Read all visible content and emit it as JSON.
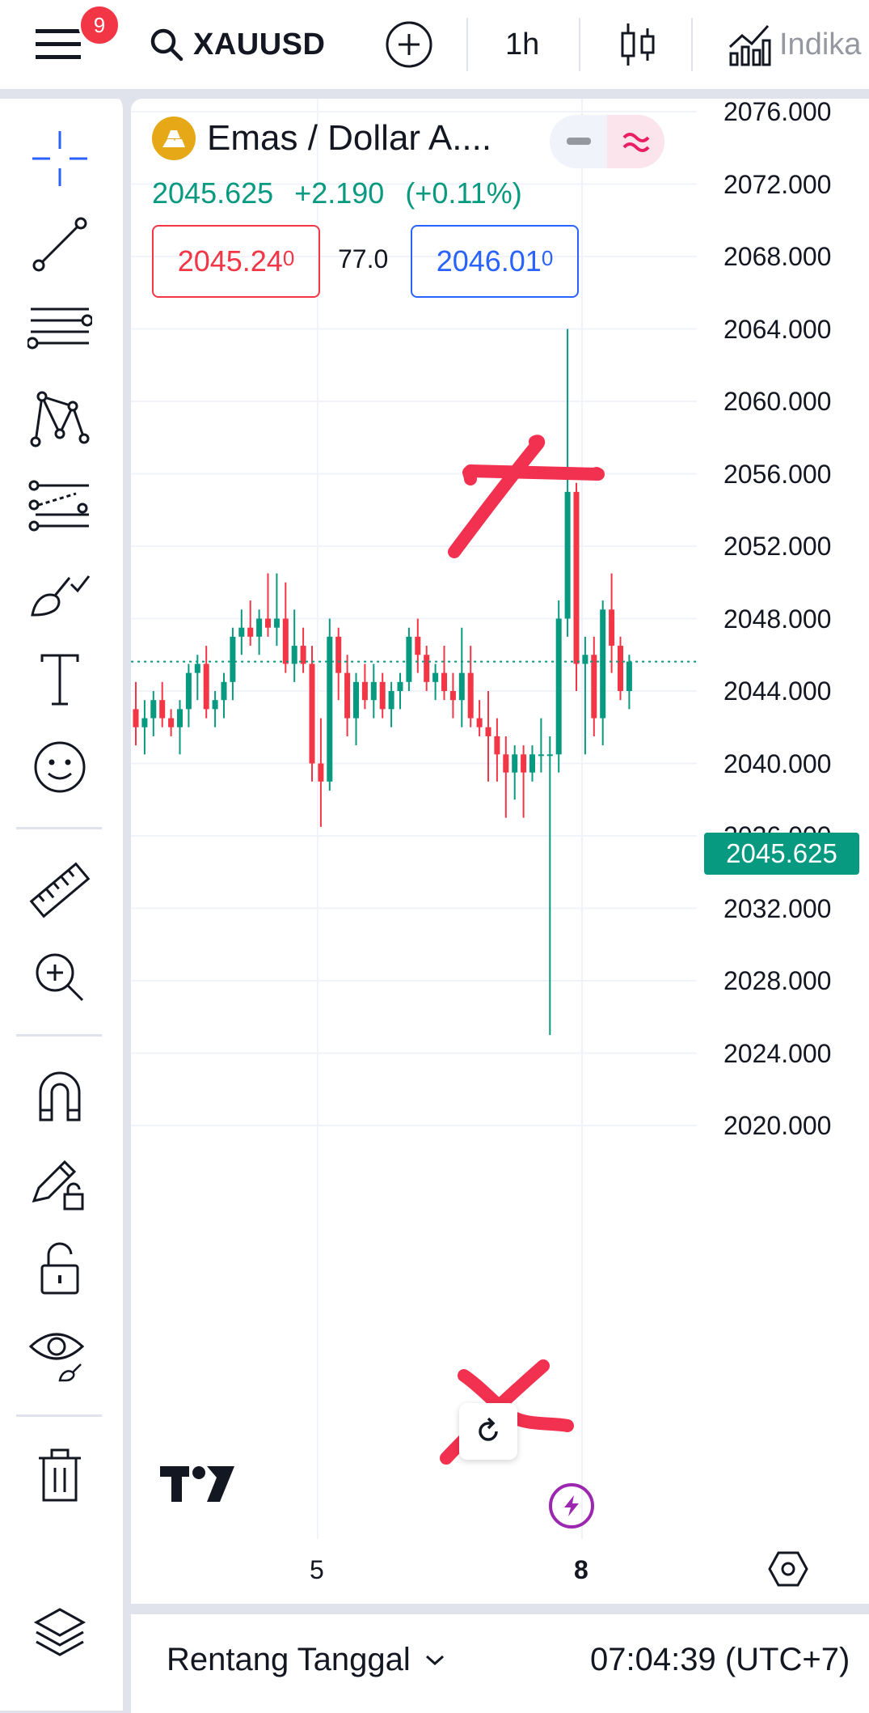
{
  "topbar": {
    "notification_count": "9",
    "symbol": "XAUUSD",
    "interval": "1h",
    "indicators_label": "Indika"
  },
  "legend": {
    "title": "Emas / Dollar A....",
    "last_price": "2045.625",
    "change": "+2.190",
    "change_pct": "(+0.11%)",
    "bid_main": "2045.24",
    "bid_sup": "0",
    "spread": "77.0",
    "ask_main": "2046.01",
    "ask_sup": "0"
  },
  "price_axis": {
    "labels": [
      "2076.000",
      "2072.000",
      "2068.000",
      "2064.000",
      "2060.000",
      "2056.000",
      "2052.000",
      "2048.000",
      "2044.000",
      "2040.000",
      "2036.000",
      "2032.000",
      "2028.000",
      "2024.000",
      "2020.000"
    ],
    "current_price_label": "2045.625"
  },
  "time_axis": {
    "labels": [
      "5",
      "8"
    ]
  },
  "bottombar": {
    "range_label": "Rentang Tanggal",
    "clock": "07:04:39 (UTC+7)"
  },
  "colors": {
    "up": "#089981",
    "down": "#f23645",
    "accent": "#2962ff",
    "annotation": "#f2304f"
  },
  "icons": {
    "menu": "menu-icon",
    "search": "search-icon",
    "add": "add-circle-icon",
    "chart_type": "candles-icon",
    "indicators": "indicators-icon"
  },
  "chart_data": {
    "type": "candlestick",
    "symbol": "XAUUSD",
    "interval": "1h",
    "ylim": [
      2018,
      2078
    ],
    "x_ticks": [
      "5",
      "8"
    ],
    "candles": [
      [
        2043.0,
        2044.5,
        2041.0,
        2042.0
      ],
      [
        2042.0,
        2043.5,
        2040.5,
        2042.5
      ],
      [
        2042.5,
        2044.0,
        2041.5,
        2043.5
      ],
      [
        2043.5,
        2044.5,
        2042.0,
        2042.5
      ],
      [
        2042.5,
        2043.0,
        2041.5,
        2042.0
      ],
      [
        2042.0,
        2043.5,
        2040.5,
        2043.0
      ],
      [
        2043.0,
        2045.5,
        2042.0,
        2045.0
      ],
      [
        2045.0,
        2046.0,
        2043.5,
        2045.5
      ],
      [
        2045.5,
        2046.5,
        2042.5,
        2043.0
      ],
      [
        2043.0,
        2044.0,
        2042.0,
        2043.5
      ],
      [
        2043.5,
        2045.0,
        2042.5,
        2044.5
      ],
      [
        2044.5,
        2047.5,
        2043.5,
        2047.0
      ],
      [
        2047.0,
        2048.5,
        2046.0,
        2047.5
      ],
      [
        2047.5,
        2049.0,
        2046.5,
        2047.0
      ],
      [
        2047.0,
        2048.5,
        2046.0,
        2048.0
      ],
      [
        2048.0,
        2050.5,
        2047.0,
        2047.5
      ],
      [
        2047.5,
        2050.5,
        2046.5,
        2048.0
      ],
      [
        2048.0,
        2050.0,
        2045.0,
        2045.5
      ],
      [
        2045.5,
        2048.5,
        2044.5,
        2046.5
      ],
      [
        2046.5,
        2047.5,
        2045.0,
        2045.5
      ],
      [
        2045.5,
        2046.5,
        2039.0,
        2040.0
      ],
      [
        2040.0,
        2042.5,
        2036.5,
        2039.0
      ],
      [
        2039.0,
        2048.0,
        2038.5,
        2047.0
      ],
      [
        2047.0,
        2047.5,
        2043.5,
        2045.0
      ],
      [
        2045.0,
        2046.0,
        2041.5,
        2042.5
      ],
      [
        2042.5,
        2045.0,
        2041.0,
        2044.5
      ],
      [
        2044.5,
        2045.5,
        2043.0,
        2043.5
      ],
      [
        2043.5,
        2045.5,
        2042.5,
        2044.5
      ],
      [
        2044.5,
        2045.0,
        2042.5,
        2043.0
      ],
      [
        2043.0,
        2044.5,
        2042.0,
        2044.0
      ],
      [
        2044.0,
        2045.0,
        2043.0,
        2044.5
      ],
      [
        2044.5,
        2047.5,
        2044.0,
        2047.0
      ],
      [
        2047.0,
        2048.0,
        2045.0,
        2046.0
      ],
      [
        2046.0,
        2046.5,
        2044.0,
        2044.5
      ],
      [
        2044.5,
        2045.5,
        2043.5,
        2045.0
      ],
      [
        2045.0,
        2046.5,
        2043.5,
        2044.0
      ],
      [
        2044.0,
        2045.0,
        2042.5,
        2043.5
      ],
      [
        2043.5,
        2047.5,
        2042.0,
        2045.0
      ],
      [
        2045.0,
        2046.5,
        2042.0,
        2042.5
      ],
      [
        2042.5,
        2043.5,
        2041.5,
        2042.0
      ],
      [
        2042.0,
        2044.0,
        2039.0,
        2041.5
      ],
      [
        2041.5,
        2042.5,
        2039.0,
        2040.5
      ],
      [
        2040.5,
        2041.5,
        2037.0,
        2039.5
      ],
      [
        2039.5,
        2041.0,
        2038.0,
        2040.5
      ],
      [
        2040.5,
        2041.0,
        2037.0,
        2039.5
      ],
      [
        2039.5,
        2041.0,
        2039.0,
        2040.5
      ],
      [
        2040.5,
        2042.5,
        2039.5,
        2040.5
      ],
      [
        2040.5,
        2041.5,
        2025.0,
        2040.5
      ],
      [
        2040.5,
        2049.0,
        2039.5,
        2048.0
      ],
      [
        2048.0,
        2064.0,
        2047.0,
        2055.0
      ],
      [
        2055.0,
        2055.5,
        2044.0,
        2045.5
      ],
      [
        2045.5,
        2047.0,
        2040.5,
        2046.0
      ],
      [
        2046.0,
        2047.0,
        2041.5,
        2042.5
      ],
      [
        2042.5,
        2049.0,
        2041.0,
        2048.5
      ],
      [
        2048.5,
        2050.5,
        2045.0,
        2046.5
      ],
      [
        2046.5,
        2047.0,
        2043.5,
        2044.0
      ],
      [
        2044.0,
        2046.0,
        2043.0,
        2045.625
      ]
    ]
  }
}
